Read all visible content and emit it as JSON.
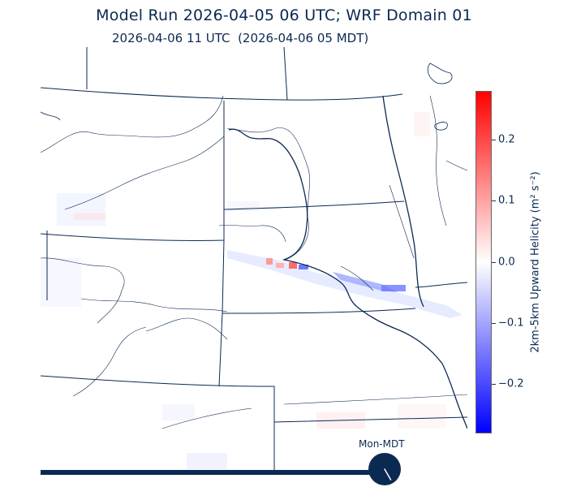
{
  "header": {
    "title": "Model Run 2026-04-05 06 UTC; WRF Domain 01",
    "valid_time": "2026-04-06 11 UTC  (2026-04-06 05 MDT)"
  },
  "colorbar": {
    "label": "2km-5km Upward Helicity (m² s⁻²)",
    "ticks": [
      "0.2",
      "0.1",
      "0.0",
      "−0.1",
      "−0.2"
    ],
    "tick_values": [
      0.2,
      0.1,
      0.0,
      -0.1,
      -0.2
    ],
    "range": [
      -0.28,
      0.28
    ],
    "colormap": "bwr",
    "colors": {
      "high": "#ff0000",
      "mid": "#ffffff",
      "low": "#0000ff"
    }
  },
  "clock": {
    "label": "Mon-MDT",
    "hour": 5,
    "color": "#0b2a52"
  },
  "map": {
    "line_color": "#0b2a52",
    "features": [
      "state-borders",
      "rivers",
      "lakes"
    ]
  }
}
